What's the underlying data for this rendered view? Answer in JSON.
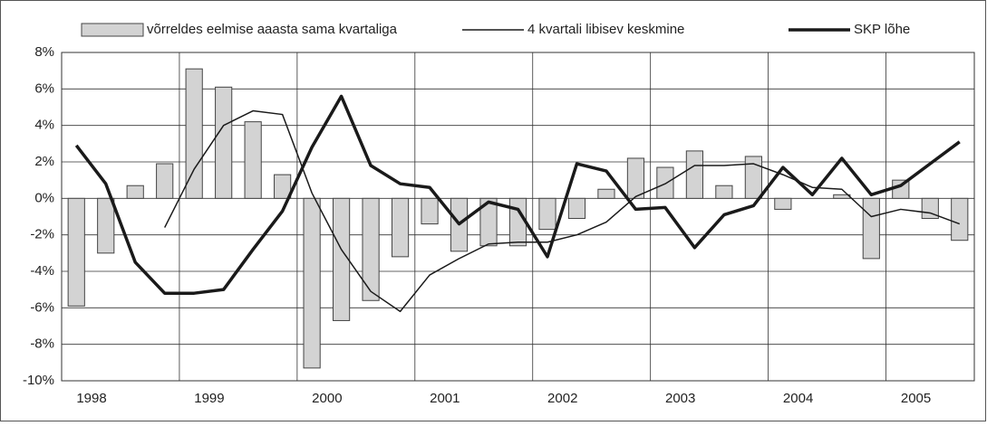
{
  "chart_data": {
    "type": "bar-line",
    "categories": [
      "1998",
      null,
      null,
      null,
      "1999",
      null,
      null,
      null,
      "2000",
      null,
      null,
      null,
      "2001",
      null,
      null,
      null,
      "2002",
      null,
      null,
      null,
      "2003",
      null,
      null,
      null,
      "2004",
      null,
      null,
      null,
      "2005",
      null,
      null
    ],
    "series": [
      {
        "name": "võrreldes eelmise aaasta sama kvartaliga",
        "kind": "bar",
        "color": "#d3d3d3",
        "values": [
          -5.9,
          -3.0,
          0.7,
          1.9,
          7.1,
          6.1,
          4.2,
          1.3,
          -9.3,
          -6.7,
          -5.6,
          -3.2,
          -1.4,
          -2.9,
          -2.6,
          -2.6,
          -1.7,
          -1.1,
          0.5,
          2.2,
          1.7,
          2.6,
          0.7,
          2.3,
          -0.6,
          0.0,
          0.2,
          -3.3,
          1.0,
          -1.1,
          -2.3
        ]
      },
      {
        "name": "4 kvartali libisev keskmine",
        "kind": "line",
        "width": 1.5,
        "color": "#1a1a1a",
        "values": [
          null,
          null,
          null,
          -1.6,
          1.6,
          4.0,
          4.8,
          4.6,
          0.3,
          -2.8,
          -5.1,
          -6.2,
          -4.2,
          -3.3,
          -2.5,
          -2.4,
          -2.4,
          -2.0,
          -1.3,
          0.1,
          0.8,
          1.8,
          1.8,
          1.9,
          1.3,
          0.6,
          0.5,
          -1.0,
          -0.6,
          -0.8,
          -1.4
        ]
      },
      {
        "name": "SKP lõhe",
        "kind": "line",
        "width": 3.5,
        "color": "#1a1a1a",
        "values": [
          2.9,
          0.8,
          -3.5,
          -5.2,
          -5.2,
          -5.0,
          -2.8,
          -0.7,
          2.8,
          5.6,
          1.8,
          0.8,
          0.6,
          -1.4,
          -0.2,
          -0.6,
          -3.2,
          1.9,
          1.5,
          -0.6,
          -0.5,
          -2.7,
          -0.9,
          -0.4,
          1.7,
          0.2,
          2.2,
          0.2,
          0.7,
          1.9,
          3.1
        ]
      }
    ],
    "ylim": [
      -10,
      8
    ],
    "yticks": [
      {
        "value": -10,
        "label": "-10%"
      },
      {
        "value": -8,
        "label": "-8%"
      },
      {
        "value": -6,
        "label": "-6%"
      },
      {
        "value": -4,
        "label": "-4%"
      },
      {
        "value": -2,
        "label": "-2%"
      },
      {
        "value": 0,
        "label": "0%"
      },
      {
        "value": 2,
        "label": "2%"
      },
      {
        "value": 4,
        "label": "4%"
      },
      {
        "value": 6,
        "label": "6%"
      },
      {
        "value": 8,
        "label": "8%"
      }
    ],
    "grid": true,
    "legend": "top"
  }
}
